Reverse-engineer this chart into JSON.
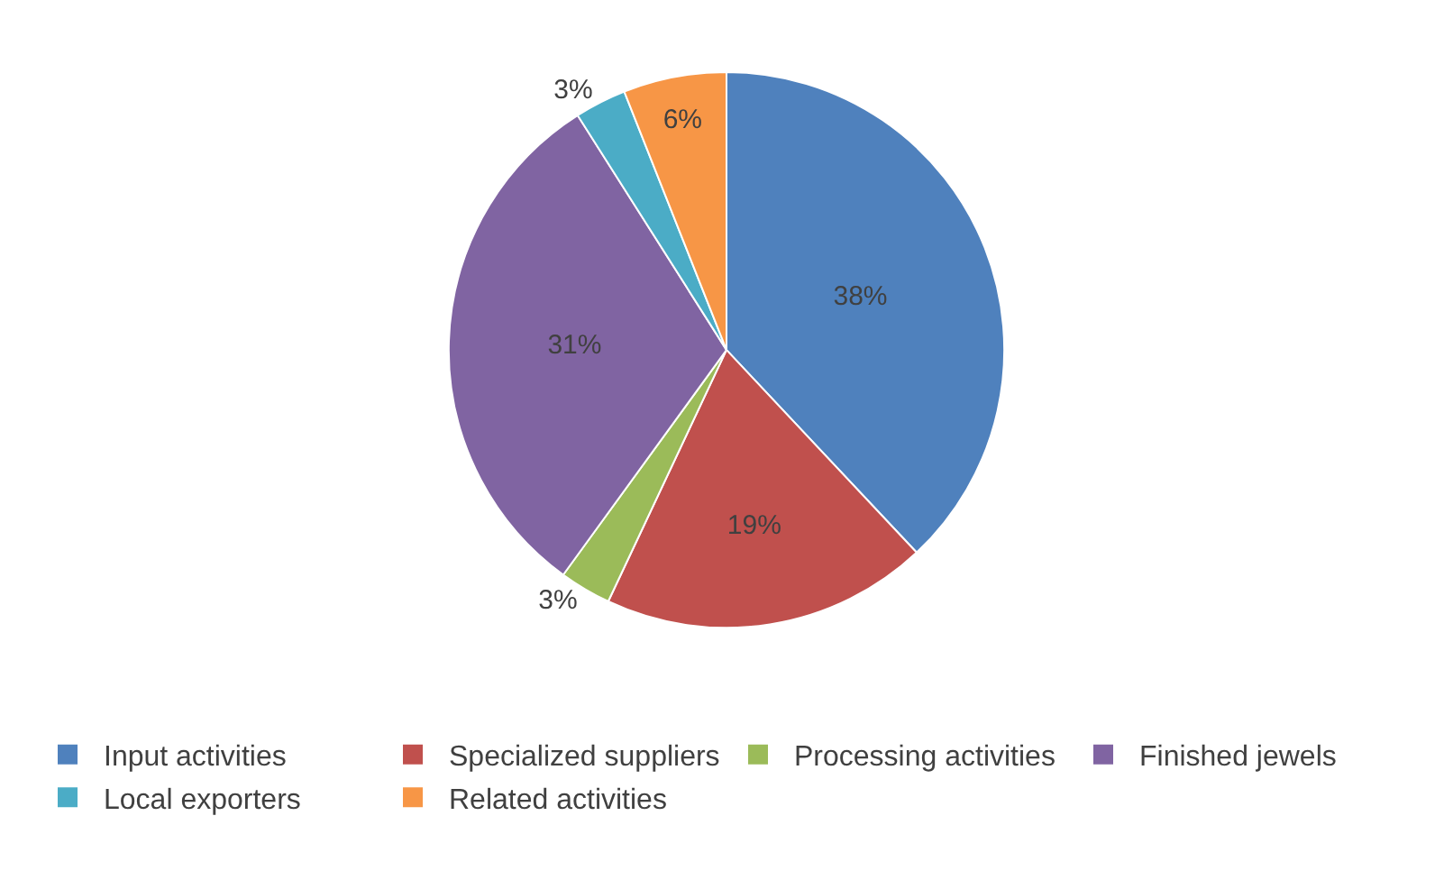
{
  "chart_data": {
    "type": "pie",
    "categories": [
      "Input activities",
      "Specialized suppliers",
      "Processing activities",
      "Finished jewels",
      "Local exporters",
      "Related activities"
    ],
    "values": [
      38,
      19,
      3,
      31,
      3,
      6
    ],
    "value_labels": [
      "38%",
      "19%",
      "3%",
      "31%",
      "3%",
      "6%"
    ],
    "colors": [
      "#4f81bd",
      "#c0504d",
      "#9bbb59",
      "#8064a2",
      "#4bacc6",
      "#f79646"
    ],
    "legend": "bottom"
  }
}
